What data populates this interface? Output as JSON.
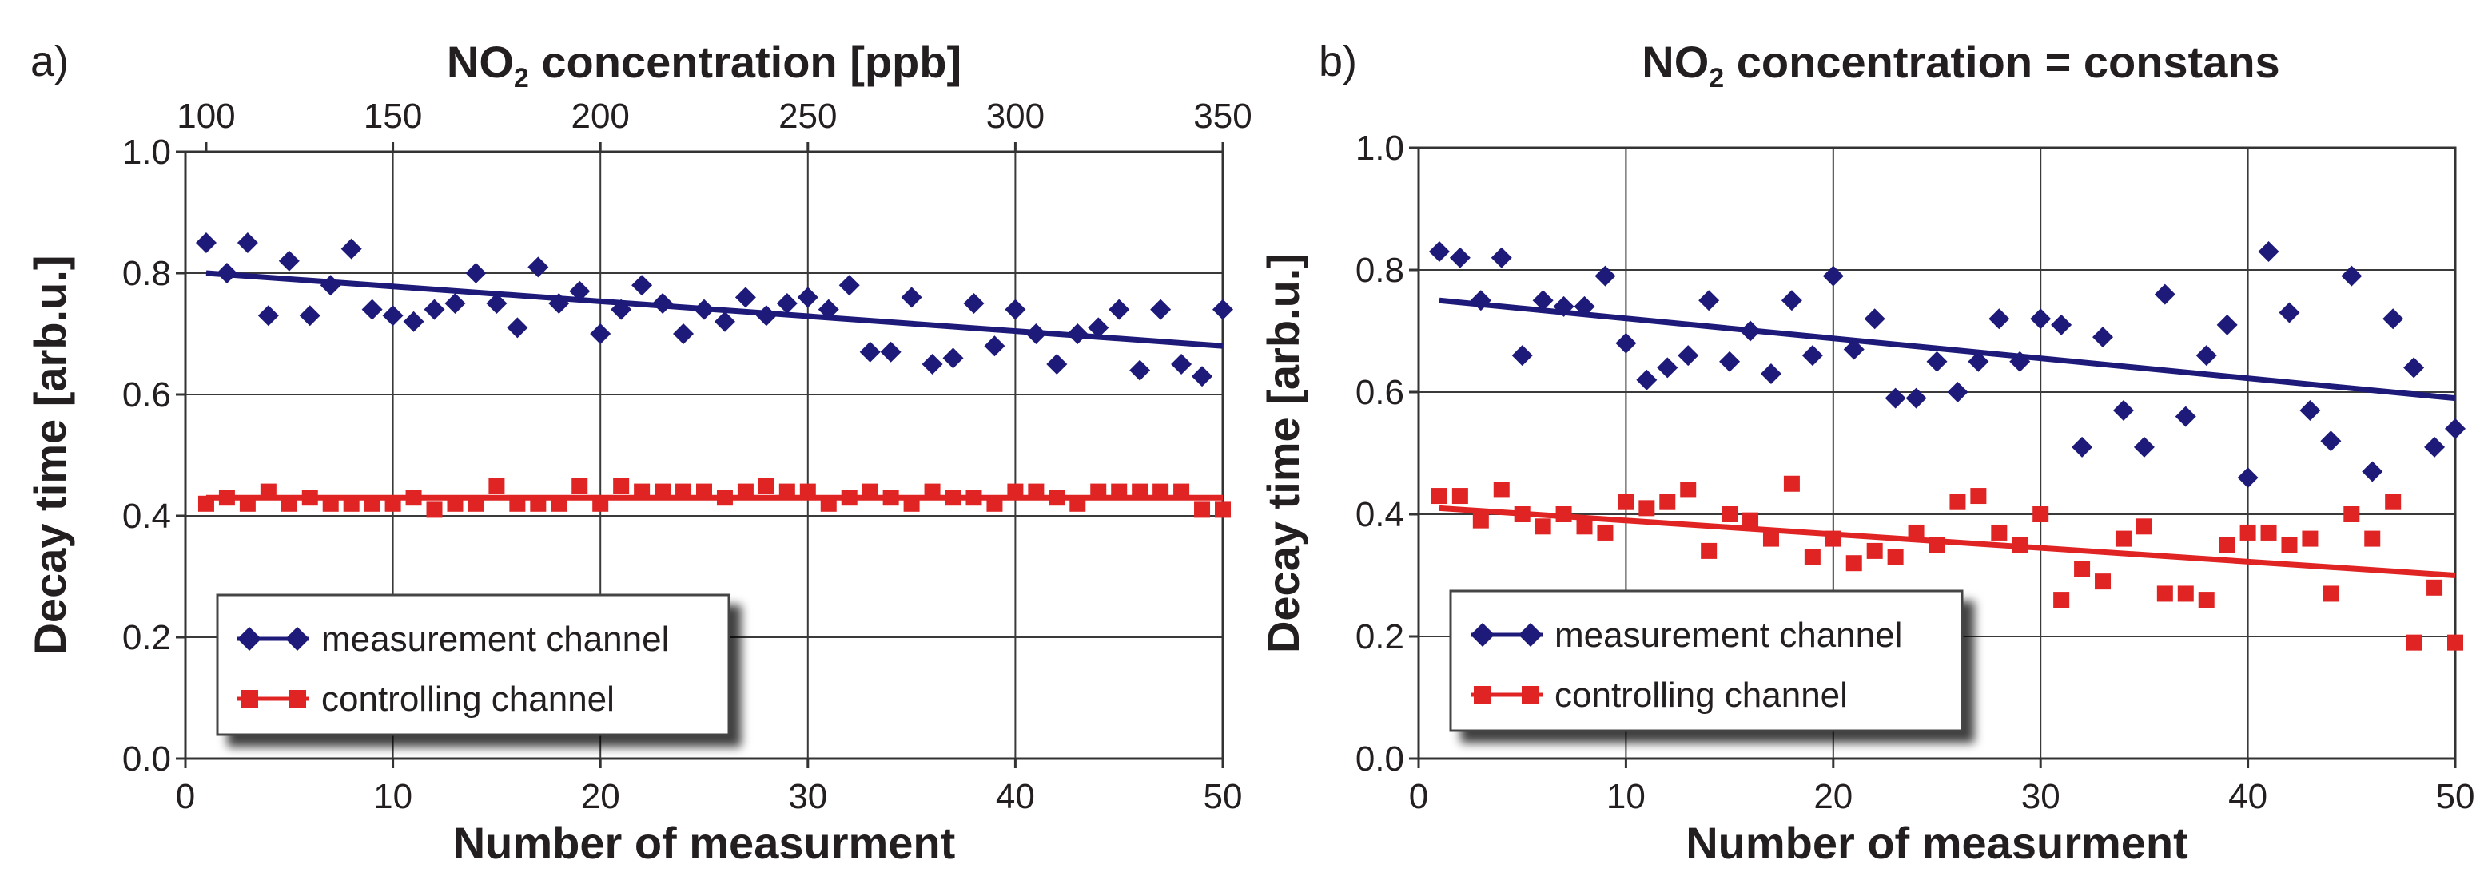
{
  "chart_data": [
    {
      "type": "scatter",
      "panel_label": "a)",
      "title_prefix": "NO",
      "title_sub": "2",
      "title_suffix": " concentration [ppb]",
      "xlabel": "Number of measurment",
      "ylabel": "Decay time [arb.u.]",
      "xlim": [
        0,
        50
      ],
      "ylim": [
        0,
        1
      ],
      "xticks": [
        0,
        10,
        20,
        30,
        40,
        50
      ],
      "xticklabels": [
        "0",
        "10",
        "20",
        "30",
        "40",
        "50"
      ],
      "yticks": [
        0,
        0.2,
        0.4,
        0.6,
        0.8,
        1.0
      ],
      "yticklabels": [
        "0.0",
        "0.2",
        "0.4",
        "0.6",
        "0.8",
        "1.0"
      ],
      "top_axis": {
        "ticks": [
          1,
          10,
          20,
          30,
          40,
          50
        ],
        "labels": [
          "100",
          "150",
          "200",
          "250",
          "300",
          "350"
        ]
      },
      "legend": {
        "placement": "bottom-left",
        "entries": [
          "measurement channel",
          "controlling channel"
        ]
      },
      "series": [
        {
          "name": "measurement channel",
          "marker": "diamond",
          "color": "#1e1a7a",
          "x": [
            1,
            2,
            3,
            4,
            5,
            6,
            7,
            8,
            9,
            10,
            11,
            12,
            13,
            14,
            15,
            16,
            17,
            18,
            19,
            20,
            21,
            22,
            23,
            24,
            25,
            26,
            27,
            28,
            29,
            30,
            31,
            32,
            33,
            34,
            35,
            36,
            37,
            38,
            39,
            40,
            41,
            42,
            43,
            44,
            45,
            46,
            47,
            48,
            49,
            50
          ],
          "y": [
            0.85,
            0.8,
            0.85,
            0.73,
            0.82,
            0.73,
            0.78,
            0.84,
            0.74,
            0.73,
            0.72,
            0.74,
            0.75,
            0.8,
            0.75,
            0.71,
            0.81,
            0.75,
            0.77,
            0.7,
            0.74,
            0.78,
            0.75,
            0.7,
            0.74,
            0.72,
            0.76,
            0.73,
            0.75,
            0.76,
            0.74,
            0.78,
            0.67,
            0.67,
            0.76,
            0.65,
            0.66,
            0.75,
            0.68,
            0.74,
            0.7,
            0.65,
            0.7,
            0.71,
            0.74,
            0.64,
            0.74,
            0.65,
            0.63,
            0.74
          ],
          "trend": [
            0.8,
            0.68
          ]
        },
        {
          "name": "controlling channel",
          "marker": "square",
          "color": "#e02424",
          "x": [
            1,
            2,
            3,
            4,
            5,
            6,
            7,
            8,
            9,
            10,
            11,
            12,
            13,
            14,
            15,
            16,
            17,
            18,
            19,
            20,
            21,
            22,
            23,
            24,
            25,
            26,
            27,
            28,
            29,
            30,
            31,
            32,
            33,
            34,
            35,
            36,
            37,
            38,
            39,
            40,
            41,
            42,
            43,
            44,
            45,
            46,
            47,
            48,
            49,
            50
          ],
          "y": [
            0.42,
            0.43,
            0.42,
            0.44,
            0.42,
            0.43,
            0.42,
            0.42,
            0.42,
            0.42,
            0.43,
            0.41,
            0.42,
            0.42,
            0.45,
            0.42,
            0.42,
            0.42,
            0.45,
            0.42,
            0.45,
            0.44,
            0.44,
            0.44,
            0.44,
            0.43,
            0.44,
            0.45,
            0.44,
            0.44,
            0.42,
            0.43,
            0.44,
            0.43,
            0.42,
            0.44,
            0.43,
            0.43,
            0.42,
            0.44,
            0.44,
            0.43,
            0.42,
            0.44,
            0.44,
            0.44,
            0.44,
            0.44,
            0.41,
            0.41
          ],
          "trend": [
            0.43,
            0.43
          ]
        }
      ]
    },
    {
      "type": "scatter",
      "panel_label": "b)",
      "title_prefix": "NO",
      "title_sub": "2",
      "title_suffix": " concentration = constans",
      "xlabel": "Number of measurment",
      "ylabel": "Decay time [arb.u.]",
      "xlim": [
        0,
        50
      ],
      "ylim": [
        0,
        1
      ],
      "xticks": [
        0,
        10,
        20,
        30,
        40,
        50
      ],
      "xticklabels": [
        "0",
        "10",
        "20",
        "30",
        "40",
        "50"
      ],
      "yticks": [
        0,
        0.2,
        0.4,
        0.6,
        0.8,
        1.0
      ],
      "yticklabels": [
        "0.0",
        "0.2",
        "0.4",
        "0.6",
        "0.8",
        "1.0"
      ],
      "legend": {
        "placement": "bottom-left",
        "entries": [
          "measurement channel",
          "controlling channel"
        ]
      },
      "series": [
        {
          "name": "measurement channel",
          "marker": "diamond",
          "color": "#1e1a7a",
          "x": [
            1,
            2,
            3,
            4,
            5,
            6,
            7,
            8,
            9,
            10,
            11,
            12,
            13,
            14,
            15,
            16,
            17,
            18,
            19,
            20,
            21,
            22,
            23,
            24,
            25,
            26,
            27,
            28,
            29,
            30,
            31,
            32,
            33,
            34,
            35,
            36,
            37,
            38,
            39,
            40,
            41,
            42,
            43,
            44,
            45,
            46,
            47,
            48,
            49,
            50
          ],
          "y": [
            0.83,
            0.82,
            0.75,
            0.82,
            0.66,
            0.75,
            0.74,
            0.74,
            0.79,
            0.68,
            0.62,
            0.64,
            0.66,
            0.75,
            0.65,
            0.7,
            0.63,
            0.75,
            0.66,
            0.79,
            0.67,
            0.72,
            0.59,
            0.59,
            0.65,
            0.6,
            0.65,
            0.72,
            0.65,
            0.72,
            0.71,
            0.51,
            0.69,
            0.57,
            0.51,
            0.76,
            0.56,
            0.66,
            0.71,
            0.46,
            0.83,
            0.73,
            0.57,
            0.52,
            0.79,
            0.47,
            0.72,
            0.64,
            0.51,
            0.54
          ],
          "trend": [
            0.75,
            0.59
          ]
        },
        {
          "name": "controlling channel",
          "marker": "square",
          "color": "#e02424",
          "x": [
            1,
            2,
            3,
            4,
            5,
            6,
            7,
            8,
            9,
            10,
            11,
            12,
            13,
            14,
            15,
            16,
            17,
            18,
            19,
            20,
            21,
            22,
            23,
            24,
            25,
            26,
            27,
            28,
            29,
            30,
            31,
            32,
            33,
            34,
            35,
            36,
            37,
            38,
            39,
            40,
            41,
            42,
            43,
            44,
            45,
            46,
            47,
            48,
            49,
            50
          ],
          "y": [
            0.43,
            0.43,
            0.39,
            0.44,
            0.4,
            0.38,
            0.4,
            0.38,
            0.37,
            0.42,
            0.41,
            0.42,
            0.44,
            0.34,
            0.4,
            0.39,
            0.36,
            0.45,
            0.33,
            0.36,
            0.32,
            0.34,
            0.33,
            0.37,
            0.35,
            0.42,
            0.43,
            0.37,
            0.35,
            0.4,
            0.26,
            0.31,
            0.29,
            0.36,
            0.38,
            0.27,
            0.27,
            0.26,
            0.35,
            0.37,
            0.37,
            0.35,
            0.36,
            0.27,
            0.4,
            0.36,
            0.42,
            0.19,
            0.28,
            0.19
          ],
          "trend": [
            0.41,
            0.3
          ]
        }
      ]
    }
  ]
}
